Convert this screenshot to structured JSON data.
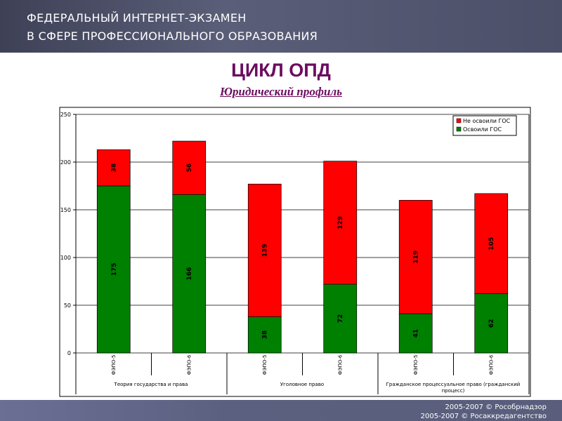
{
  "header": {
    "line1": "ФЕДЕРАЛЬНЫЙ ИНТЕРНЕТ-ЭКЗАМЕН",
    "line2": "В СФЕРЕ ПРОФЕССИОНАЛЬНОГО ОБРАЗОВАНИЯ"
  },
  "footer": {
    "line1": "2005-2007 © Рособрнадзор",
    "line2": "2005-2007 © Росаккредагентство"
  },
  "chart_data": {
    "type": "bar",
    "stacked": true,
    "title": "ЦИКЛ ОПД",
    "subtitle": "Юридический профиль",
    "categories": [
      "ФЭПО-5",
      "ФЭПО-6",
      "ФЭПО-5",
      "ФЭПО-6",
      "ФЭПО-5",
      "ФЭПО-6"
    ],
    "groups": [
      "Теория государства и права",
      "Уголовное право",
      "Гражданское процессуальное право (гражданский процесс)"
    ],
    "series": [
      {
        "name": "Освоили ГОС",
        "color": "#008000",
        "values": [
          175,
          166,
          38,
          72,
          41,
          62
        ]
      },
      {
        "name": "Не освоили ГОС",
        "color": "#ff0000",
        "values": [
          38,
          56,
          139,
          129,
          119,
          105
        ]
      }
    ],
    "ylim": [
      0,
      250
    ],
    "yticks": [
      0,
      50,
      100,
      150,
      200,
      250
    ],
    "grid": true,
    "legend": "top-right"
  }
}
